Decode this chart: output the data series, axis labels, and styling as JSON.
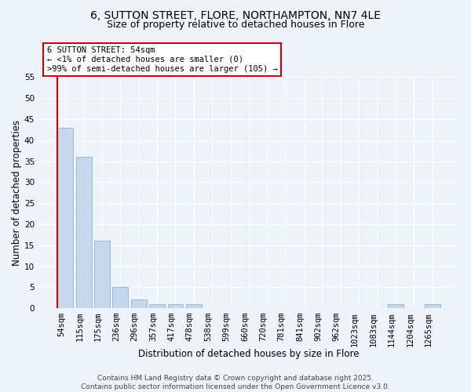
{
  "title1": "6, SUTTON STREET, FLORE, NORTHAMPTON, NN7 4LE",
  "title2": "Size of property relative to detached houses in Flore",
  "xlabel": "Distribution of detached houses by size in Flore",
  "ylabel": "Number of detached properties",
  "bar_labels": [
    "54sqm",
    "115sqm",
    "175sqm",
    "236sqm",
    "296sqm",
    "357sqm",
    "417sqm",
    "478sqm",
    "538sqm",
    "599sqm",
    "660sqm",
    "720sqm",
    "781sqm",
    "841sqm",
    "902sqm",
    "962sqm",
    "1023sqm",
    "1083sqm",
    "1144sqm",
    "1204sqm",
    "1265sqm"
  ],
  "bar_values": [
    43,
    36,
    16,
    5,
    2,
    1,
    1,
    1,
    0,
    0,
    0,
    0,
    0,
    0,
    0,
    0,
    0,
    0,
    1,
    0,
    1
  ],
  "bar_color": "#c5d8ec",
  "bar_edge_color": "#8ab4d4",
  "marker_color": "#cc0000",
  "annotation_line1": "6 SUTTON STREET: 54sqm",
  "annotation_line2": "← <1% of detached houses are smaller (0)",
  "annotation_line3": ">99% of semi-detached houses are larger (105) →",
  "annotation_box_facecolor": "#ffffff",
  "annotation_border_color": "#cc0000",
  "ylim": [
    0,
    55
  ],
  "yticks": [
    0,
    5,
    10,
    15,
    20,
    25,
    30,
    35,
    40,
    45,
    50,
    55
  ],
  "bg_color": "#eef3f9",
  "title_fontsize": 10,
  "subtitle_fontsize": 9,
  "axis_label_fontsize": 8.5,
  "tick_fontsize": 7.5,
  "annot_fontsize": 7.5,
  "footer_fontsize": 6.5,
  "footer": "Contains HM Land Registry data © Crown copyright and database right 2025.\nContains public sector information licensed under the Open Government Licence v3.0."
}
